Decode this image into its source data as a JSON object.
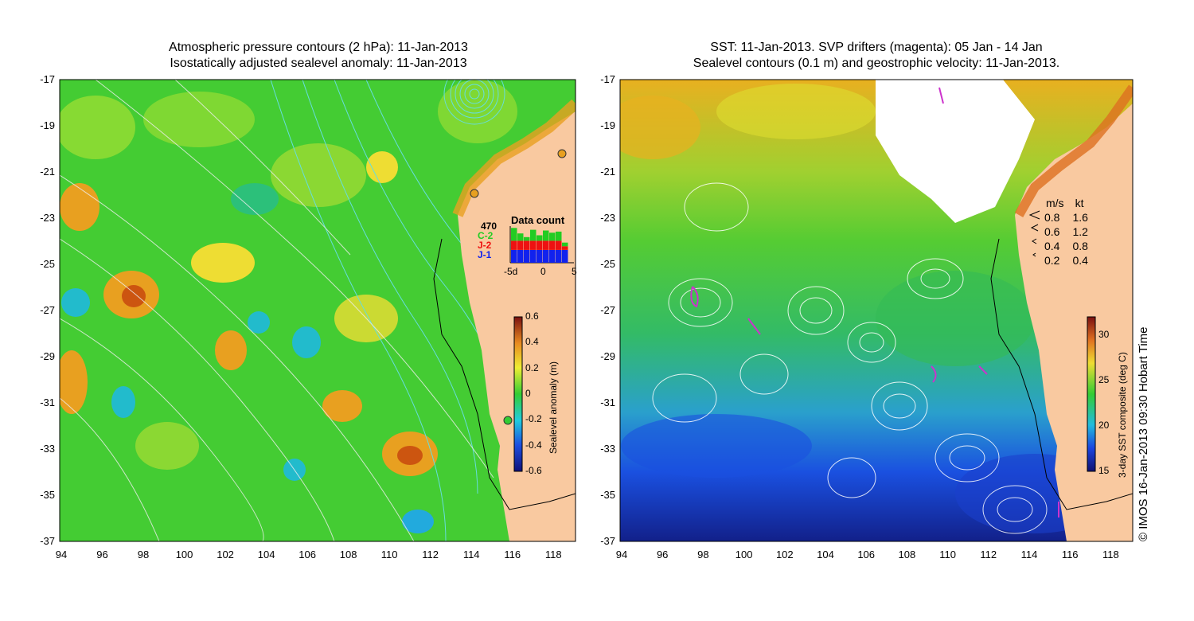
{
  "left_panel": {
    "title_line1": "Atmospheric pressure contours (2 hPa): 11-Jan-2013",
    "title_line2": "Isostatically adjusted sealevel anomaly: 11-Jan-2013",
    "x_ticks": [
      "94",
      "96",
      "98",
      "100",
      "102",
      "104",
      "106",
      "108",
      "110",
      "112",
      "114",
      "116",
      "118"
    ],
    "y_ticks": [
      "-17",
      "-19",
      "-21",
      "-23",
      "-25",
      "-27",
      "-29",
      "-31",
      "-33",
      "-35",
      "-37"
    ],
    "colorbar": {
      "label": "Sealevel anomaly (m)",
      "ticks": [
        "0.6",
        "0.4",
        "0.2",
        "0",
        "-0.2",
        "-0.4",
        "-0.6"
      ],
      "range": [
        -0.6,
        0.6
      ]
    },
    "data_count": {
      "title": "Data count",
      "max_label": "470",
      "legend": [
        {
          "label": "C-2",
          "color": "#22cc22"
        },
        {
          "label": "J-2",
          "color": "#ee1111"
        },
        {
          "label": "J-1",
          "color": "#1122ee"
        }
      ],
      "x_ticks": [
        "-5d",
        "0",
        "5"
      ],
      "bars": [
        {
          "j1": 0.35,
          "j2": 0.25,
          "c2": 0.35
        },
        {
          "j1": 0.35,
          "j2": 0.25,
          "c2": 0.2
        },
        {
          "j1": 0.35,
          "j2": 0.25,
          "c2": 0.1
        },
        {
          "j1": 0.35,
          "j2": 0.25,
          "c2": 0.3
        },
        {
          "j1": 0.35,
          "j2": 0.25,
          "c2": 0.15
        },
        {
          "j1": 0.35,
          "j2": 0.25,
          "c2": 0.28
        },
        {
          "j1": 0.35,
          "j2": 0.25,
          "c2": 0.22
        },
        {
          "j1": 0.35,
          "j2": 0.25,
          "c2": 0.25
        },
        {
          "j1": 0.35,
          "j2": 0.1,
          "c2": 0.1
        }
      ]
    }
  },
  "right_panel": {
    "title_line1": "SST: 11-Jan-2013. SVP drifters (magenta): 05 Jan - 14 Jan",
    "title_line2": "Sealevel contours (0.1 m) and geostrophic velocity: 11-Jan-2013.",
    "x_ticks": [
      "94",
      "96",
      "98",
      "100",
      "102",
      "104",
      "106",
      "108",
      "110",
      "112",
      "114",
      "116",
      "118"
    ],
    "y_ticks": [
      "-17",
      "-19",
      "-21",
      "-23",
      "-25",
      "-27",
      "-29",
      "-31",
      "-33",
      "-35",
      "-37"
    ],
    "velocity_legend": {
      "header_ms": "m/s",
      "header_kt": "kt",
      "rows": [
        {
          "ms": "0.8",
          "kt": "1.6"
        },
        {
          "ms": "0.6",
          "kt": "1.2"
        },
        {
          "ms": "0.4",
          "kt": "0.8"
        },
        {
          "ms": "0.2",
          "kt": "0.4"
        }
      ]
    },
    "colorbar": {
      "label": "3-day SST composite (deg C)",
      "ticks": [
        "30",
        "25",
        "20",
        "15"
      ],
      "range": [
        15,
        32
      ]
    }
  },
  "credit": "© IMOS 16-Jan-2013 09:30 Hobart Time",
  "colors": {
    "land": "#f9c9a0",
    "sla_mid": "#44cc33",
    "sst_warm": "#e8a020",
    "sst_cold": "#1a33cc",
    "drifter": "#cc33cc",
    "contour": "#ffffff",
    "pressure_contour": "#66dddd"
  }
}
